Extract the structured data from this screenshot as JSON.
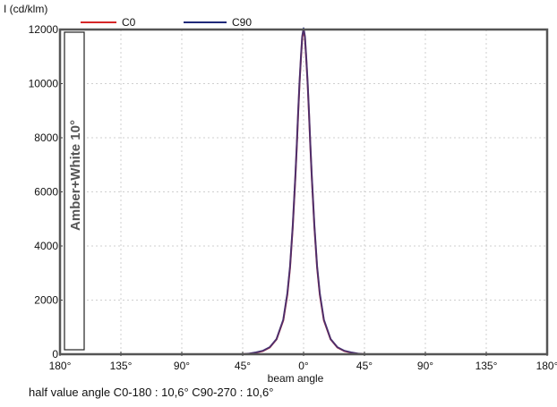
{
  "chart_data": {
    "type": "line",
    "ylabel": "I (cd/klm)",
    "xlabel": "beam angle",
    "side_label": "Amber+White 10°",
    "x_ticks": [
      "180°",
      "135°",
      "90°",
      "45°",
      "0°",
      "45°",
      "90°",
      "135°",
      "180°"
    ],
    "x_tick_values": [
      -180,
      -135,
      -90,
      -45,
      0,
      45,
      90,
      135,
      180
    ],
    "xlim": [
      -180,
      180
    ],
    "ylim": [
      0,
      12000
    ],
    "y_ticks": [
      0,
      2000,
      4000,
      6000,
      8000,
      10000,
      12000
    ],
    "grid": true,
    "legend_position": "top",
    "series": [
      {
        "name": "C0",
        "color": "#d62728",
        "x": [
          -60,
          -45,
          -40,
          -35,
          -30,
          -25,
          -20,
          -15,
          -12,
          -10,
          -8,
          -6,
          -5,
          -4,
          -3,
          -2,
          -1,
          0,
          1,
          2,
          3,
          4,
          5,
          6,
          8,
          10,
          12,
          15,
          20,
          25,
          30,
          35,
          40,
          45,
          60
        ],
        "y": [
          0,
          0,
          20,
          60,
          120,
          250,
          550,
          1250,
          2200,
          3200,
          4700,
          6600,
          7700,
          8900,
          10000,
          10900,
          11700,
          12000,
          11700,
          10900,
          10000,
          8900,
          7700,
          6600,
          4700,
          3200,
          2200,
          1250,
          550,
          250,
          120,
          60,
          20,
          0,
          0
        ]
      },
      {
        "name": "C90",
        "color": "#1f2a7a",
        "x": [
          -60,
          -45,
          -40,
          -35,
          -30,
          -25,
          -20,
          -15,
          -12,
          -10,
          -8,
          -6,
          -5,
          -4,
          -3,
          -2,
          -1,
          0,
          1,
          2,
          3,
          4,
          5,
          6,
          8,
          10,
          12,
          15,
          20,
          25,
          30,
          35,
          40,
          45,
          60
        ],
        "y": [
          0,
          0,
          25,
          70,
          130,
          260,
          560,
          1280,
          2250,
          3250,
          4750,
          6650,
          7750,
          8950,
          10050,
          10950,
          11750,
          12050,
          11750,
          10950,
          10050,
          8950,
          7750,
          6650,
          4750,
          3250,
          2250,
          1280,
          560,
          260,
          130,
          70,
          25,
          0,
          0
        ]
      }
    ]
  },
  "footer": {
    "half_value_text": "half value angle C0-180 : 10,6° C90-270 : 10,6°"
  }
}
